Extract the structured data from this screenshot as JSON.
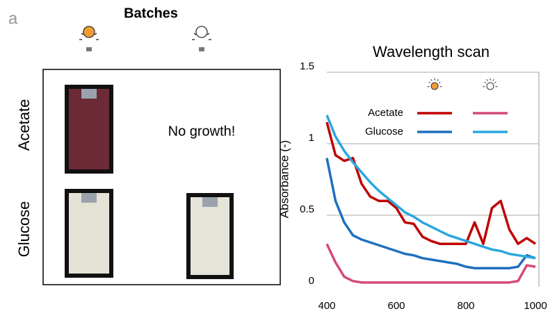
{
  "panel_label": "a",
  "batches": {
    "title": "Batches",
    "rows": [
      "Acetate",
      "Glucose"
    ],
    "note": "No growth!"
  },
  "chart_data": {
    "type": "line",
    "title": "Wavelength scan",
    "y_label": "Absorbance (-)",
    "x": [
      400,
      425,
      450,
      475,
      500,
      525,
      550,
      575,
      600,
      625,
      650,
      675,
      700,
      725,
      750,
      775,
      800,
      825,
      850,
      875,
      900,
      925,
      950,
      975,
      1000
    ],
    "xlim": [
      400,
      1000
    ],
    "xticks": [
      400,
      600,
      800,
      1000
    ],
    "ylim": [
      0,
      1.5
    ],
    "yticks": [
      0,
      0.5,
      1,
      1.5
    ],
    "grid": true,
    "series": [
      {
        "name": "Acetate",
        "color": "#c00000",
        "values": [
          1.15,
          0.92,
          0.88,
          0.9,
          0.72,
          0.63,
          0.6,
          0.6,
          0.55,
          0.45,
          0.44,
          0.35,
          0.32,
          0.3,
          0.3,
          0.3,
          0.3,
          0.45,
          0.3,
          0.55,
          0.6,
          0.4,
          0.3,
          0.34,
          0.3
        ]
      },
      {
        "color": "#d5497a",
        "values": [
          0.3,
          0.17,
          0.07,
          0.04,
          0.03,
          0.03,
          0.03,
          0.03,
          0.03,
          0.03,
          0.03,
          0.03,
          0.03,
          0.03,
          0.03,
          0.03,
          0.03,
          0.03,
          0.03,
          0.03,
          0.03,
          0.03,
          0.04,
          0.15,
          0.14
        ]
      },
      {
        "name": "Glucose",
        "color": "#1f6fbf",
        "values": [
          0.9,
          0.6,
          0.45,
          0.36,
          0.33,
          0.31,
          0.29,
          0.27,
          0.25,
          0.23,
          0.22,
          0.2,
          0.19,
          0.18,
          0.17,
          0.16,
          0.14,
          0.13,
          0.13,
          0.13,
          0.13,
          0.13,
          0.14,
          0.22,
          0.2
        ]
      },
      {
        "color": "#2aa7df",
        "values": [
          1.2,
          1.05,
          0.95,
          0.87,
          0.8,
          0.73,
          0.67,
          0.62,
          0.57,
          0.52,
          0.49,
          0.45,
          0.42,
          0.39,
          0.36,
          0.34,
          0.32,
          0.3,
          0.28,
          0.26,
          0.25,
          0.23,
          0.22,
          0.21,
          0.2
        ]
      }
    ]
  }
}
